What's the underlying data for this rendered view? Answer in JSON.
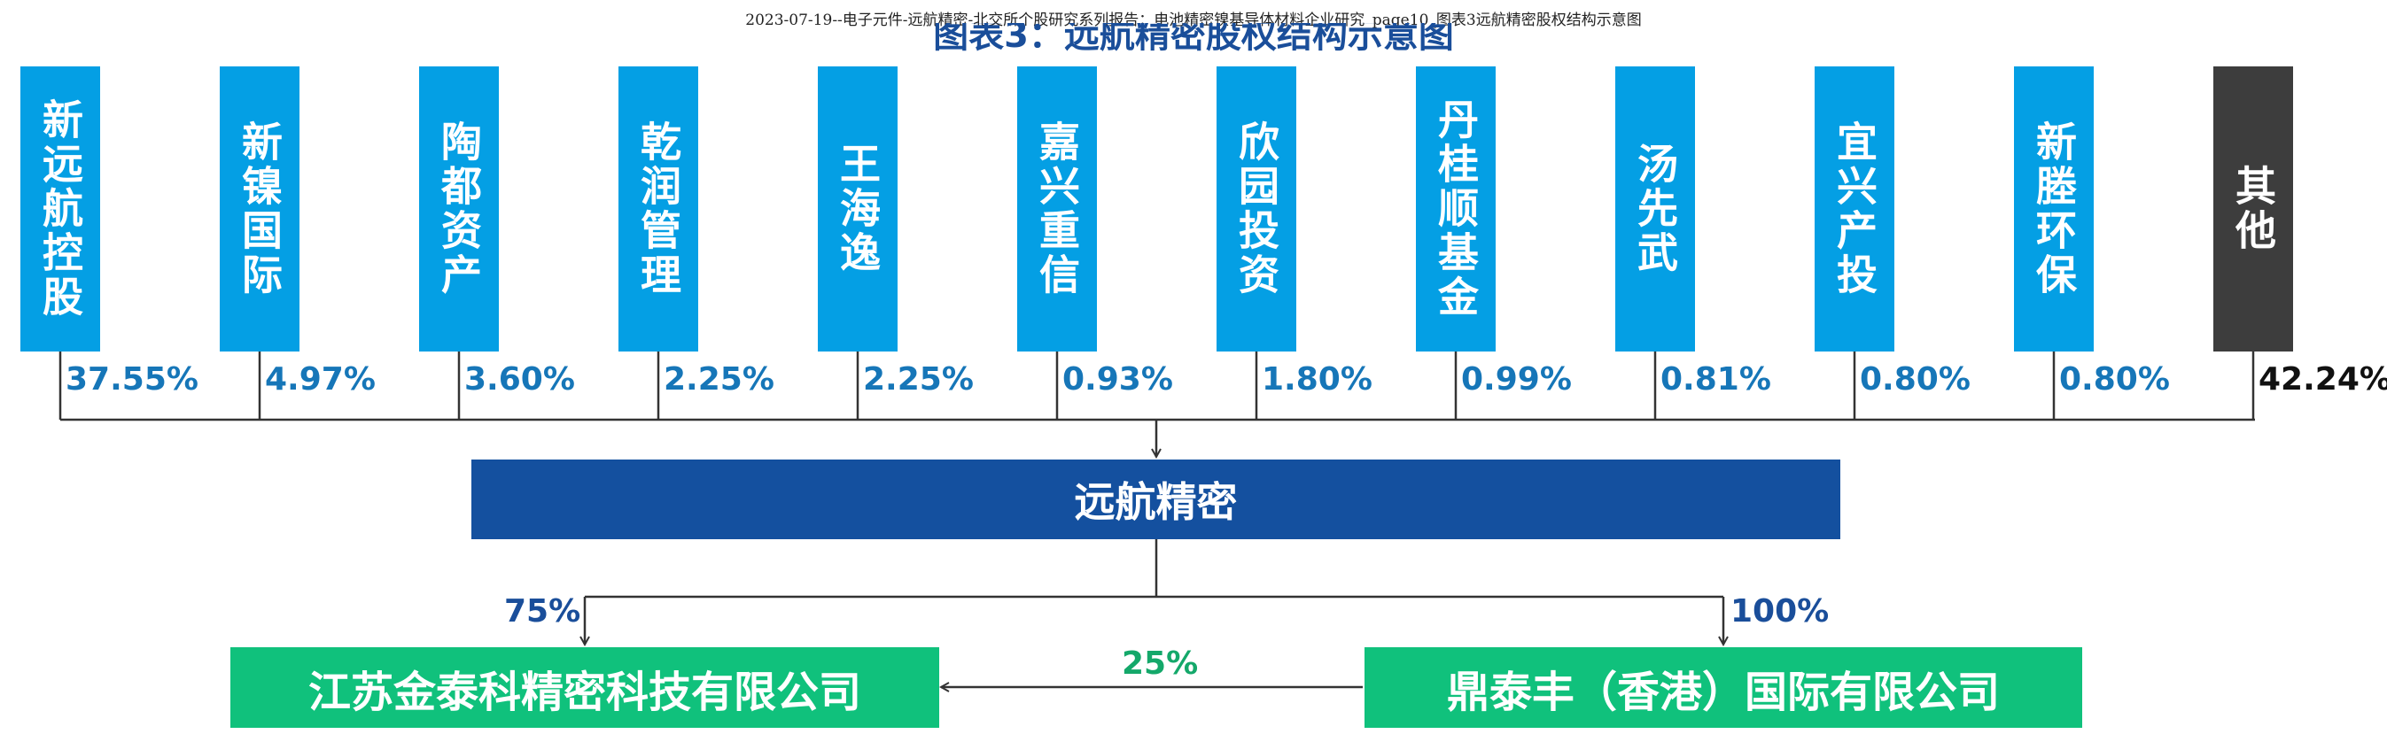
{
  "header": {
    "caption": "2023-07-19--电子元件-远航精密-北交所个股研究系列报告：电池精密镍基导体材料企业研究_page10_图表3远航精密股权结构示意图",
    "title": "图表3：远航精密股权结构示意图"
  },
  "shareholders": [
    {
      "name": "新远航控股",
      "pct": "37.55%"
    },
    {
      "name": "新镍国际",
      "pct": "4.97%"
    },
    {
      "name": "陶都资产",
      "pct": "3.60%"
    },
    {
      "name": "乾润管理",
      "pct": "2.25%"
    },
    {
      "name": "王海逸",
      "pct": "2.25%"
    },
    {
      "name": "嘉兴重信",
      "pct": "0.93%"
    },
    {
      "name": "欣园投资",
      "pct": "1.80%"
    },
    {
      "name": "丹桂顺基金",
      "pct": "0.99%"
    },
    {
      "name": "汤先武",
      "pct": "0.81%"
    },
    {
      "name": "宜兴产投",
      "pct": "0.80%"
    },
    {
      "name": "新塍环保",
      "pct": "0.80%"
    },
    {
      "name": "其他",
      "pct": "42.24%"
    }
  ],
  "company": {
    "name": "远航精密"
  },
  "subsidiaries": {
    "left": {
      "name": "江苏金泰科精密科技有限公司",
      "pct": "75%"
    },
    "right": {
      "name": "鼎泰丰（香港）国际有限公司",
      "pct": "100%"
    },
    "cross_pct": "25%"
  },
  "colors": {
    "shareholder_box": "#049fe4",
    "other_box": "#3d3d3d",
    "company_box": "#14509f",
    "subsidiary_box": "#10c17c",
    "pct_text": "#1676b8",
    "edge_label_blue": "#1a4e9a",
    "edge_label_green": "#14a86a"
  }
}
